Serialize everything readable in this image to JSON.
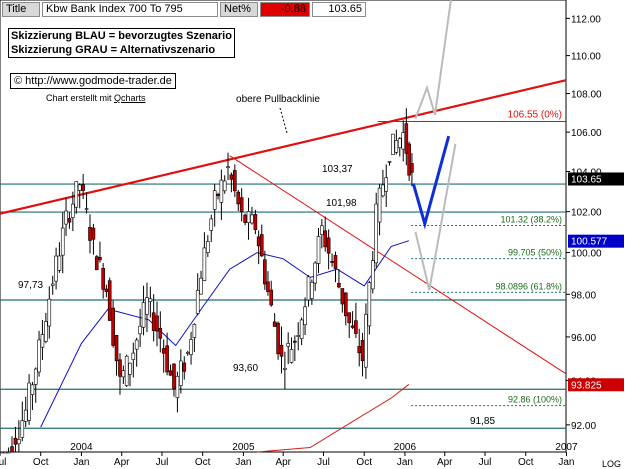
{
  "header": {
    "title_label": "Title",
    "title_value": "Kbw Bank Index 700 To 795",
    "net_label": "Net%",
    "net_value": "-0.88",
    "last_value": "103.65"
  },
  "legend": {
    "line1": "Skizzierung BLAU = bevorzugtes Szenario",
    "line2": "Skizzierung GRAU = Alternativszenario"
  },
  "source": {
    "copyright": "© http://www.godmode-trader.de",
    "credit_prefix": "Chart erstellt mit ",
    "credit_link": "Qcharts"
  },
  "colors": {
    "price": "#000000",
    "up_body": "#ffffff",
    "down_body": "#c00000",
    "ma_short": "#1010c0",
    "ma_long": "#d02020",
    "trendline": "#e01010",
    "level_line": "#1f6f6f",
    "scenario_blue": "#0d2fd8",
    "scenario_grey": "#bbbbbb",
    "fib_label": "#1a6b1a"
  },
  "chart_data": {
    "type": "candlestick",
    "title": "Kbw Bank Index 700 To 795",
    "ylim": [
      90.8,
      113.0
    ],
    "xlim": [
      "2003-07-01",
      "2006-12-31"
    ],
    "y_scale": "log",
    "y_ticks": [
      "92.00",
      "94.00",
      "96.00",
      "98.00",
      "100.00",
      "102.00",
      "104.00",
      "106.00",
      "108.00",
      "110.00",
      "112.00"
    ],
    "x_ticks": [
      {
        "label": "Jul",
        "date": "2003-07-01"
      },
      {
        "label": "Oct",
        "date": "2003-10-01"
      },
      {
        "label": "Jan",
        "sub": "2004",
        "date": "2004-01-01"
      },
      {
        "label": "Apr",
        "date": "2004-04-01"
      },
      {
        "label": "Jul",
        "date": "2004-07-01"
      },
      {
        "label": "Oct",
        "date": "2004-10-01"
      },
      {
        "label": "Jan",
        "sub": "2005",
        "date": "2005-01-01"
      },
      {
        "label": "Apr",
        "date": "2005-04-01"
      },
      {
        "label": "Jul",
        "date": "2005-07-01"
      },
      {
        "label": "Oct",
        "date": "2005-10-01"
      },
      {
        "label": "Jan",
        "sub": "2006",
        "date": "2006-01-01"
      },
      {
        "label": "Apr",
        "date": "2006-04-01"
      },
      {
        "label": "Jul",
        "date": "2006-07-01"
      },
      {
        "label": "Oct",
        "date": "2006-10-01"
      },
      {
        "label": "Jan",
        "sub": "2007",
        "date": "2007-01-01"
      }
    ],
    "log_label": "LOG",
    "price_series": [
      [
        "2003-07-01",
        89.8
      ],
      [
        "2003-08-01",
        91.2
      ],
      [
        "2003-09-01",
        92.6
      ],
      [
        "2003-10-01",
        95.4
      ],
      [
        "2003-11-01",
        98.7
      ],
      [
        "2003-12-01",
        101.6
      ],
      [
        "2004-01-01",
        103.4
      ],
      [
        "2004-02-01",
        100.2
      ],
      [
        "2004-03-01",
        98.3
      ],
      [
        "2004-04-01",
        93.9
      ],
      [
        "2004-05-01",
        95.4
      ],
      [
        "2004-06-01",
        97.6
      ],
      [
        "2004-07-01",
        96.0
      ],
      [
        "2004-08-01",
        93.6
      ],
      [
        "2004-09-01",
        95.2
      ],
      [
        "2004-10-01",
        99.1
      ],
      [
        "2004-11-01",
        102.5
      ],
      [
        "2004-12-01",
        104.1
      ],
      [
        "2005-01-01",
        101.7
      ],
      [
        "2005-02-01",
        101.3
      ],
      [
        "2005-03-01",
        98.1
      ],
      [
        "2005-04-01",
        94.9
      ],
      [
        "2005-05-01",
        95.9
      ],
      [
        "2005-06-01",
        98.3
      ],
      [
        "2005-07-01",
        101.1
      ],
      [
        "2005-08-01",
        99.0
      ],
      [
        "2005-09-01",
        96.6
      ],
      [
        "2005-10-01",
        95.0
      ],
      [
        "2005-11-01",
        101.8
      ],
      [
        "2005-12-01",
        105.1
      ],
      [
        "2006-01-01",
        105.9
      ],
      [
        "2006-01-20",
        103.65
      ]
    ],
    "ma_short": [
      [
        "2003-10-01",
        91.9
      ],
      [
        "2004-01-01",
        95.7
      ],
      [
        "2004-03-01",
        97.3
      ],
      [
        "2004-06-01",
        96.8
      ],
      [
        "2004-08-01",
        95.6
      ],
      [
        "2004-10-01",
        97.4
      ],
      [
        "2004-12-01",
        99.2
      ],
      [
        "2005-02-01",
        100.0
      ],
      [
        "2005-04-01",
        99.7
      ],
      [
        "2005-06-01",
        98.8
      ],
      [
        "2005-08-01",
        99.2
      ],
      [
        "2005-10-01",
        98.4
      ],
      [
        "2005-12-01",
        100.3
      ],
      [
        "2006-01-10",
        100.577
      ]
    ],
    "ma_long": [
      [
        "2005-02-01",
        90.0
      ],
      [
        "2005-06-01",
        91.0
      ],
      [
        "2005-09-01",
        92.1
      ],
      [
        "2005-12-01",
        93.2
      ],
      [
        "2006-01-10",
        93.825
      ]
    ],
    "trendline": {
      "label": "obere Pullbacklinie",
      "from": [
        "2003-07-01",
        101.9
      ],
      "to": [
        "2006-12-31",
        108.7
      ]
    },
    "downtrend_line": {
      "from": [
        "2004-12-01",
        104.8
      ],
      "to": [
        "2006-12-31",
        94.3
      ]
    },
    "horizontal_lines": [
      {
        "name": "resistance_10655",
        "value": 106.55,
        "label": "106.55 (0%)"
      },
      {
        "name": "level_10365",
        "value": 103.37,
        "label": "103,37"
      },
      {
        "name": "level_10198",
        "value": 101.98,
        "label": "101,98"
      },
      {
        "name": "level_9773",
        "value": 97.73,
        "label": "97,73"
      },
      {
        "name": "level_9360",
        "value": 93.6,
        "label": "93,60"
      },
      {
        "name": "level_9185",
        "value": 91.85,
        "label": "91,85"
      }
    ],
    "fibonacci_levels": [
      {
        "value": 101.32,
        "label": "101.32 (38.2%)"
      },
      {
        "value": 99.705,
        "label": "99.705 (50%)"
      },
      {
        "value": 98.0896,
        "label": "98.0896 (61.8%)"
      },
      {
        "value": 92.86,
        "label": "92.86 (100%)"
      }
    ],
    "price_tags": [
      {
        "value": 103.65,
        "label": "103.65",
        "style": "black"
      },
      {
        "value": 100.577,
        "label": "100.577",
        "style": "blue"
      },
      {
        "value": 93.825,
        "label": "93.825",
        "style": "red"
      }
    ],
    "scenario_blue": [
      [
        "2006-01-20",
        103.4
      ],
      [
        "2006-02-15",
        101.4
      ],
      [
        "2006-04-10",
        105.8
      ]
    ],
    "scenario_grey": [
      [
        "2006-01-25",
        101.0
      ],
      [
        "2006-02-25",
        98.2
      ],
      [
        "2006-04-25",
        105.4
      ]
    ],
    "scenario_grey_upper": [
      [
        "2006-01-25",
        106.7
      ],
      [
        "2006-02-20",
        108.3
      ],
      [
        "2006-03-10",
        106.9
      ],
      [
        "2006-04-15",
        113.0
      ]
    ]
  }
}
